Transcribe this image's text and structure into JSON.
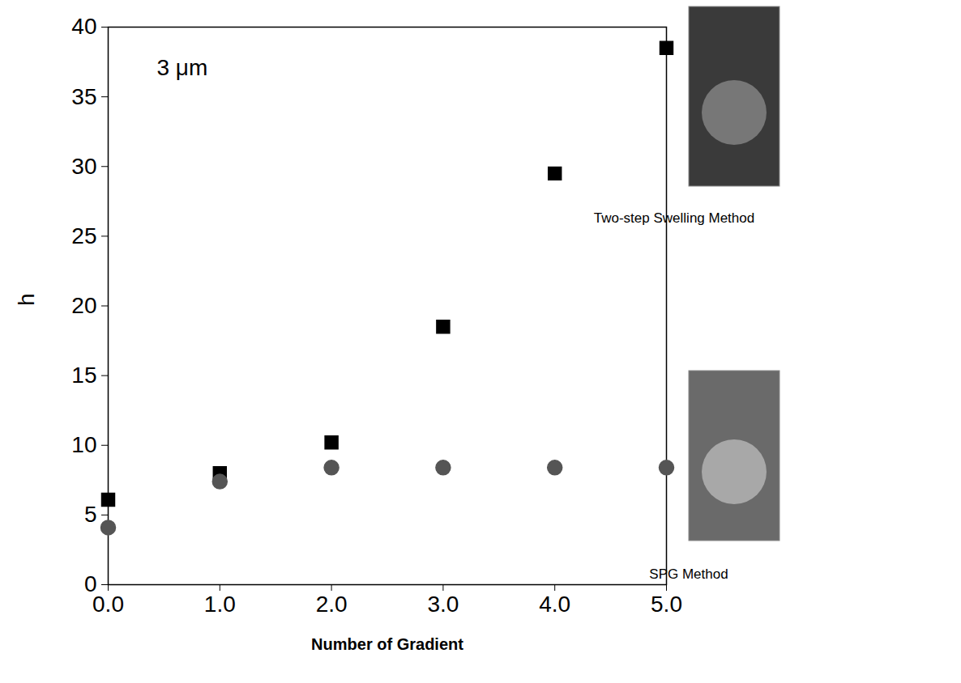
{
  "chart_data": {
    "type": "scatter",
    "annotation": "3 μm",
    "x_label": "Number of Gradient",
    "y_label": "h",
    "x": [
      0,
      1,
      2,
      3,
      4,
      5
    ],
    "series": [
      {
        "name": "Two-step Swelling Method",
        "color": "#000000",
        "marker": "square",
        "values": [
          6.1,
          8.0,
          10.2,
          18.5,
          29.5,
          38.5
        ]
      },
      {
        "name": "SPG Method",
        "color": "#555555",
        "marker": "circle",
        "values": [
          4.1,
          7.4,
          8.4,
          8.4,
          8.4,
          8.4
        ]
      }
    ],
    "xlim": [
      0,
      5
    ],
    "xticks": [
      0,
      1,
      2,
      3,
      4,
      5
    ],
    "ylim": [
      0,
      40
    ],
    "yticks": [
      0,
      5,
      10,
      15,
      20,
      25,
      30,
      35,
      40
    ],
    "grid": false,
    "legend": "right"
  }
}
